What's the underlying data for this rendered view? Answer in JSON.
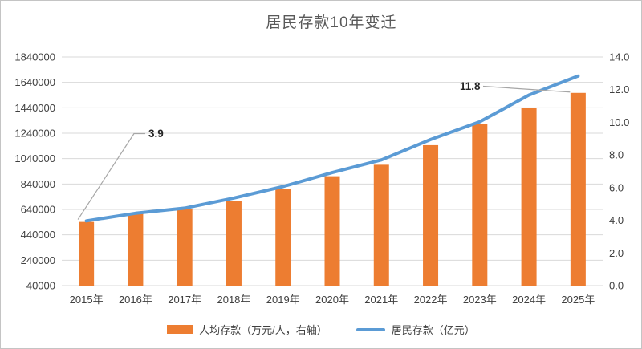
{
  "chart_data": {
    "type": "combo",
    "title": "居民存款10年变迁",
    "categories": [
      "2015年",
      "2016年",
      "2017年",
      "2018年",
      "2019年",
      "2020年",
      "2021年",
      "2022年",
      "2023年",
      "2024年",
      "2025年"
    ],
    "series": [
      {
        "name": "人均存款（万元/人，右轴）",
        "type": "bar",
        "axis": "right",
        "color": "#ED7D31",
        "values": [
          3.9,
          4.4,
          4.7,
          5.2,
          5.9,
          6.7,
          7.4,
          8.6,
          9.9,
          10.9,
          11.8
        ]
      },
      {
        "name": "居民存款（亿元）",
        "type": "line",
        "axis": "left",
        "color": "#5B9BD5",
        "values": [
          550000,
          610000,
          650000,
          730000,
          820000,
          930000,
          1030000,
          1190000,
          1330000,
          1540000,
          1690000
        ]
      }
    ],
    "left_axis": {
      "min": 40000,
      "max": 1840000,
      "step": 200000,
      "ticks": [
        "1840000",
        "1640000",
        "1440000",
        "1240000",
        "1040000",
        "840000",
        "640000",
        "440000",
        "240000",
        "40000"
      ]
    },
    "right_axis": {
      "min": 0.0,
      "max": 14.0,
      "step": 2.0,
      "ticks": [
        "14.0",
        "12.0",
        "10.0",
        "8.0",
        "6.0",
        "4.0",
        "2.0",
        "0.0"
      ]
    },
    "annotations": [
      {
        "text": "3.9",
        "series": 0,
        "category_index": 0
      },
      {
        "text": "11.8",
        "series": 0,
        "category_index": 10
      }
    ],
    "grid": true,
    "legend_position": "bottom",
    "colors": {
      "grid": "#D9D9D9",
      "tick_text": "#404040",
      "title_text": "#595959",
      "annotation_text": "#262626",
      "leader": "#A6A6A6",
      "border": "#C4C4C4",
      "background": "#FFFFFF"
    }
  }
}
